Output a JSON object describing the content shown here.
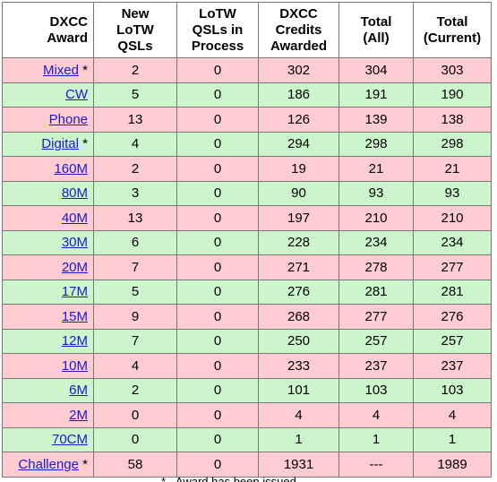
{
  "table": {
    "headers": {
      "award": [
        "DXCC",
        "Award"
      ],
      "new_lotw": [
        "New",
        "LoTW",
        "QSLs"
      ],
      "lotw_process": [
        "LoTW",
        "QSLs in",
        "Process"
      ],
      "dxcc_credits": [
        "DXCC",
        "Credits",
        "Awarded"
      ],
      "total_all": [
        "Total",
        "(All)"
      ],
      "total_current": [
        "Total",
        "(Current)"
      ]
    },
    "rows": [
      {
        "award": "Mixed",
        "star": " *",
        "new_lotw": "2",
        "in_process": "0",
        "credits": "302",
        "total_all": "304",
        "total_current": "303"
      },
      {
        "award": "CW",
        "star": "",
        "new_lotw": "5",
        "in_process": "0",
        "credits": "186",
        "total_all": "191",
        "total_current": "190"
      },
      {
        "award": "Phone",
        "star": "",
        "new_lotw": "13",
        "in_process": "0",
        "credits": "126",
        "total_all": "139",
        "total_current": "138"
      },
      {
        "award": "Digital",
        "star": " *",
        "new_lotw": "4",
        "in_process": "0",
        "credits": "294",
        "total_all": "298",
        "total_current": "298"
      },
      {
        "award": "160M",
        "star": "",
        "new_lotw": "2",
        "in_process": "0",
        "credits": "19",
        "total_all": "21",
        "total_current": "21"
      },
      {
        "award": "80M",
        "star": "",
        "new_lotw": "3",
        "in_process": "0",
        "credits": "90",
        "total_all": "93",
        "total_current": "93"
      },
      {
        "award": "40M",
        "star": "",
        "new_lotw": "13",
        "in_process": "0",
        "credits": "197",
        "total_all": "210",
        "total_current": "210"
      },
      {
        "award": "30M",
        "star": "",
        "new_lotw": "6",
        "in_process": "0",
        "credits": "228",
        "total_all": "234",
        "total_current": "234"
      },
      {
        "award": "20M",
        "star": "",
        "new_lotw": "7",
        "in_process": "0",
        "credits": "271",
        "total_all": "278",
        "total_current": "277"
      },
      {
        "award": "17M",
        "star": "",
        "new_lotw": "5",
        "in_process": "0",
        "credits": "276",
        "total_all": "281",
        "total_current": "281"
      },
      {
        "award": "15M",
        "star": "",
        "new_lotw": "9",
        "in_process": "0",
        "credits": "268",
        "total_all": "277",
        "total_current": "276"
      },
      {
        "award": "12M",
        "star": "",
        "new_lotw": "7",
        "in_process": "0",
        "credits": "250",
        "total_all": "257",
        "total_current": "257"
      },
      {
        "award": "10M",
        "star": "",
        "new_lotw": "4",
        "in_process": "0",
        "credits": "233",
        "total_all": "237",
        "total_current": "237"
      },
      {
        "award": "6M",
        "star": "",
        "new_lotw": "2",
        "in_process": "0",
        "credits": "101",
        "total_all": "103",
        "total_current": "103"
      },
      {
        "award": "2M",
        "star": "",
        "new_lotw": "0",
        "in_process": "0",
        "credits": "4",
        "total_all": "4",
        "total_current": "4"
      },
      {
        "award": "70CM",
        "star": "",
        "new_lotw": "0",
        "in_process": "0",
        "credits": "1",
        "total_all": "1",
        "total_current": "1"
      },
      {
        "award": "Challenge",
        "star": " *",
        "new_lotw": "58",
        "in_process": "0",
        "credits": "1931",
        "total_all": "---",
        "total_current": "1989"
      }
    ]
  },
  "footnote": "* - Award has been issued",
  "colors": {
    "row_pink": "#ffccd2",
    "row_green": "#ccf5cc",
    "link": "#1a1acc",
    "border": "#777777"
  }
}
